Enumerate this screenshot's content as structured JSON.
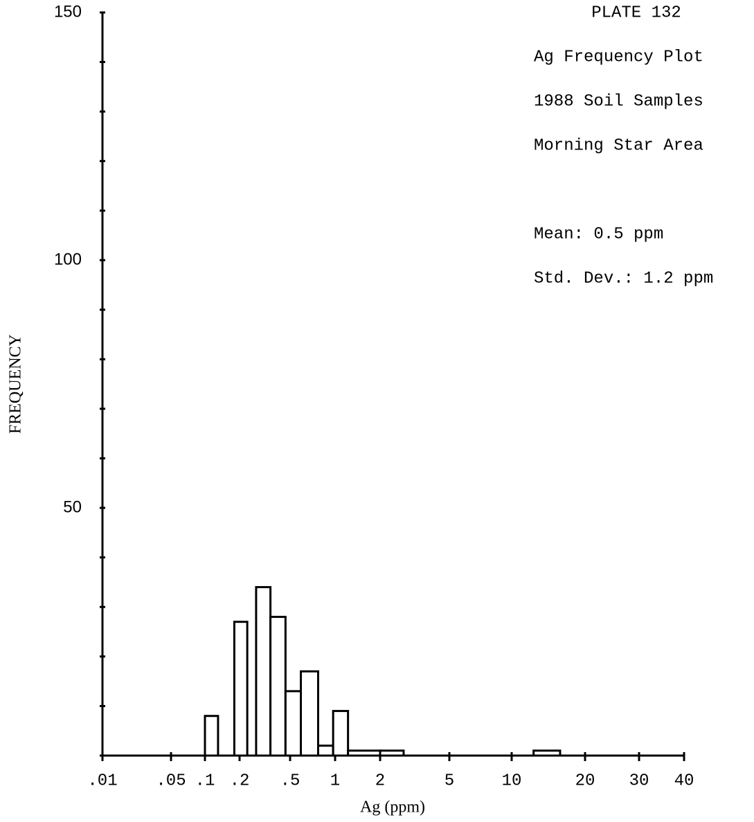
{
  "chart_data": {
    "type": "histogram",
    "title": "PLATE 132",
    "annotations": [
      "Ag Frequency Plot",
      "1988 Soil Samples",
      "Morning Star Area",
      "Mean:   0.5 ppm",
      "Std. Dev.:  1.2 ppm"
    ],
    "xlabel": "Ag (ppm)",
    "ylabel": "FREQUENCY",
    "bins": [
      0.1,
      0.13,
      0.18,
      0.23,
      0.27,
      0.35,
      0.46,
      0.59,
      0.77,
      0.97,
      1.22,
      2,
      2.73,
      12.3,
      15.8
    ],
    "counts": [
      8,
      0,
      27,
      0,
      34,
      28,
      13,
      17,
      2,
      9,
      1,
      1,
      0,
      1
    ],
    "color": "#ffffff",
    "edgecolor": "#000000",
    "xscale": "log",
    "xlim": [
      0.01,
      40
    ],
    "xticks": [
      {
        "value": 0.01,
        "label": ".01"
      },
      {
        "value": 0.05,
        "label": ".05"
      },
      {
        "value": 0.1,
        "label": ".1"
      },
      {
        "value": 0.2,
        "label": ".2"
      },
      {
        "value": 0.5,
        "label": ".5"
      },
      1,
      2,
      5,
      10,
      20,
      30,
      40
    ],
    "ylim": [
      0,
      150
    ],
    "yticks": [
      50,
      100,
      150
    ],
    "yticks_minor": [
      0,
      10,
      20,
      30,
      40,
      50,
      60,
      70,
      80,
      90,
      100,
      110,
      120,
      130,
      140,
      150
    ]
  }
}
